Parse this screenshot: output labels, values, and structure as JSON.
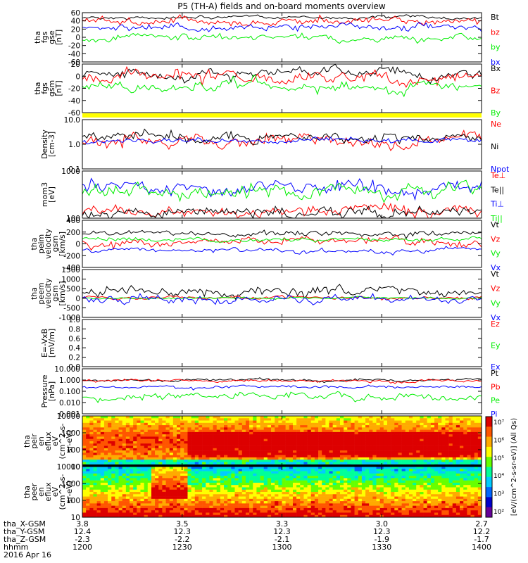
{
  "title": "P5 (TH-A) fields and on-board moments overview",
  "chart_data": [
    {
      "type": "line",
      "ylabel": [
        "tha",
        "fgs",
        "gse",
        "[nT]"
      ],
      "ylim": [
        -80,
        60
      ],
      "yticks": [
        "60",
        "40",
        "20",
        "0",
        "-20",
        "-40",
        "-60"
      ],
      "series": [
        {
          "name": "Bt",
          "color": "#000000",
          "level": 46,
          "noise": 4
        },
        {
          "name": "bz",
          "color": "#ff0000",
          "level": 35,
          "noise": 10
        },
        {
          "name": "by",
          "color": "#00ee00",
          "level": -12,
          "noise": 9
        },
        {
          "name": "bx",
          "color": "#0000ff",
          "level": 18,
          "noise": 9
        }
      ]
    },
    {
      "type": "line",
      "ylabel": [
        "tha",
        "fgs",
        "gsm",
        "[nT]"
      ],
      "ylim": [
        -80,
        40
      ],
      "yticks": [
        "20",
        "0",
        "-20",
        "-40",
        "-60"
      ],
      "series": [
        {
          "name": "Bx",
          "color": "#000000",
          "level": 18,
          "noise": 12
        },
        {
          "name": "Bz",
          "color": "#ff0000",
          "level": 5,
          "noise": 14
        },
        {
          "name": "By",
          "color": "#00ee00",
          "level": -18,
          "noise": 12
        }
      ]
    },
    {
      "type": "line",
      "log": true,
      "ylabel": [
        "Density",
        "[cm-3]"
      ],
      "ylim": [
        0.1,
        100
      ],
      "yticks": [
        "10.0",
        "1.0",
        "0.1"
      ],
      "series": [
        {
          "name": "Ne",
          "color": "#ff0000",
          "level": 6,
          "noise": 0.35
        },
        {
          "name": "Ni",
          "color": "#000000",
          "level": 9,
          "noise": 0.3
        },
        {
          "name": "Npot",
          "color": "#0000ff",
          "level": 5,
          "noise": 0.15
        }
      ]
    },
    {
      "type": "line",
      "log": true,
      "ylabel": [
        "mom3",
        "[eV]"
      ],
      "ylim": [
        20,
        3000
      ],
      "yticks": [
        "1000",
        "100"
      ],
      "series": [
        {
          "name": "Te⊥",
          "color": "#ff0000",
          "level": 45,
          "noise": 0.25
        },
        {
          "name": "Te||",
          "color": "#000000",
          "level": 40,
          "noise": 0.25
        },
        {
          "name": "Ti⊥",
          "color": "#0000ff",
          "level": 450,
          "noise": 0.3
        },
        {
          "name": "Ti||",
          "color": "#00ee00",
          "level": 330,
          "noise": 0.3
        }
      ]
    },
    {
      "type": "line",
      "ylabel": [
        "tha",
        "peim",
        "velocity",
        "gsm",
        "[km/s]"
      ],
      "ylim": [
        -400,
        400
      ],
      "yticks": [
        "400",
        "200",
        "0",
        "-200",
        "-400"
      ],
      "series": [
        {
          "name": "Vt",
          "color": "#000000",
          "level": 190,
          "noise": 45
        },
        {
          "name": "Vz",
          "color": "#ff0000",
          "level": 40,
          "noise": 60
        },
        {
          "name": "Vy",
          "color": "#00ee00",
          "level": 80,
          "noise": 30
        },
        {
          "name": "Vx",
          "color": "#0000ff",
          "level": -110,
          "noise": 40
        }
      ]
    },
    {
      "type": "line",
      "ylabel": [
        "tha",
        "peem",
        "velocity",
        "gsm",
        "[km/s]"
      ],
      "ylim": [
        -1000,
        1500
      ],
      "yticks": [
        "1500",
        "1000",
        "500",
        "0",
        "-500",
        "-1000"
      ],
      "series": [
        {
          "name": "Vt",
          "color": "#000000",
          "level": 380,
          "noise": 250
        },
        {
          "name": "Vz",
          "color": "#ff0000",
          "level": 40,
          "noise": 80
        },
        {
          "name": "Vy",
          "color": "#00ee00",
          "level": 20,
          "noise": 50
        },
        {
          "name": "Vx",
          "color": "#0000ff",
          "level": -80,
          "noise": 200
        }
      ]
    },
    {
      "type": "line",
      "ylabel": [
        "E=-VxB",
        "[mV/m]"
      ],
      "ylim": [
        0,
        1
      ],
      "yticks": [
        "1.0",
        "0.8",
        "0.6",
        "0.4",
        "0.2",
        "0.0"
      ],
      "series": [
        {
          "name": "Ez",
          "color": "#ff0000"
        },
        {
          "name": "Ey",
          "color": "#00ee00"
        },
        {
          "name": "Ex",
          "color": "#0000ff"
        }
      ]
    },
    {
      "type": "line",
      "log": true,
      "ylabel": [
        "Pressure",
        "[nPa]"
      ],
      "ylim": [
        0.001,
        10
      ],
      "yticks": [
        "10.000",
        "1.000",
        "0.100",
        "0.010",
        "0.001"
      ],
      "series": [
        {
          "name": "Pt",
          "color": "#000000",
          "level": 1.0,
          "noise": 0.1
        },
        {
          "name": "Pb",
          "color": "#ff0000",
          "level": 0.85,
          "noise": 0.12
        },
        {
          "name": "Pe",
          "color": "#00ee00",
          "level": 0.03,
          "noise": 0.3
        },
        {
          "name": "Pi",
          "color": "#0000ff",
          "level": 0.25,
          "noise": 0.12
        }
      ]
    },
    {
      "type": "heatmap",
      "ylabel": [
        "tha",
        "peir",
        "en",
        "eflux",
        "eV",
        "(cm^2-s-",
        "sr-eV)"
      ],
      "ylim": [
        5,
        20000
      ],
      "yticks": [
        "10000",
        "1000",
        "100",
        "10"
      ]
    },
    {
      "type": "heatmap",
      "ylabel": [
        "tha",
        "peer",
        "en",
        "eflux",
        "eV",
        "(cm^2-s-",
        "sr-eV)"
      ],
      "ylim": [
        5,
        30000
      ],
      "yticks": [
        "10000",
        "1000",
        "100",
        "10"
      ]
    }
  ],
  "x": {
    "ticks": [
      "1200",
      "1230",
      "1300",
      "1330",
      "1400"
    ],
    "range_minutes": [
      0,
      120
    ]
  },
  "colorbar": {
    "unit": "[eV/(cm^2-s-sr-eV)] (All Qs)",
    "ticks": [
      "10⁷",
      "10⁶",
      "10⁵",
      "10⁴",
      "10³",
      "10²"
    ]
  },
  "footer": {
    "rows": [
      {
        "label": "tha_X-GSM",
        "values": [
          "3.8",
          "3.5",
          "3.3",
          "3.0",
          "2.7"
        ]
      },
      {
        "label": "tha_Y-GSM",
        "values": [
          "12.4",
          "12.3",
          "12.3",
          "12.3",
          "12.2"
        ]
      },
      {
        "label": "tha_Z-GSM",
        "values": [
          "-2.3",
          "-2.2",
          "-2.1",
          "-1.9",
          "-1.7"
        ]
      },
      {
        "label": "hhmm",
        "values": [
          "1200",
          "1230",
          "1300",
          "1330",
          "1400"
        ]
      }
    ],
    "date": "2016 Apr 16"
  }
}
